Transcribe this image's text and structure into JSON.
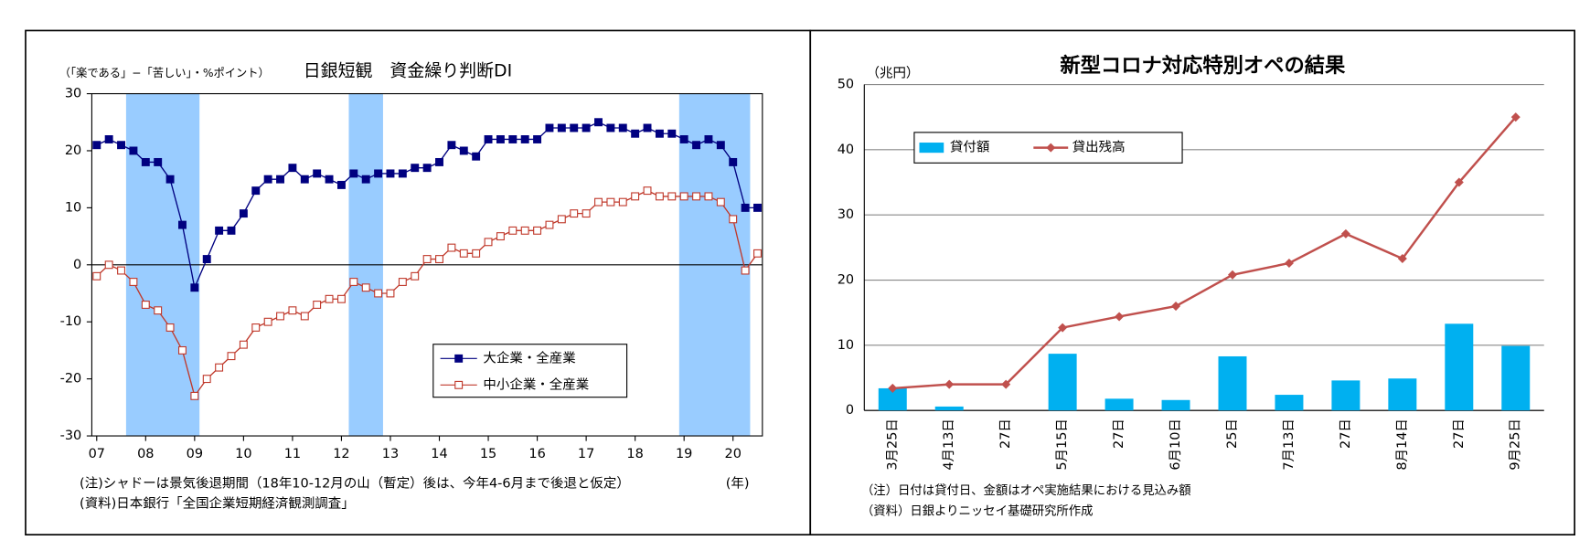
{
  "chart_data": [
    {
      "type": "line",
      "title": "日銀短観　資金繰り判断DI",
      "y_label": "（「楽である」−「苦しい」・%ポイント）",
      "x_label": "(年)",
      "notes": [
        "(注)シャドーは景気後退期間（18年10-12月の山（暫定）後は、今年4-6月まで後退と仮定）",
        "(資料)日本銀行「全国企業短期経済観測調査」"
      ],
      "x": [
        2007,
        2007.25,
        2007.5,
        2007.75,
        2008,
        2008.25,
        2008.5,
        2008.75,
        2009,
        2009.25,
        2009.5,
        2009.75,
        2010,
        2010.25,
        2010.5,
        2010.75,
        2011,
        2011.25,
        2011.5,
        2011.75,
        2012,
        2012.25,
        2012.5,
        2012.75,
        2013,
        2013.25,
        2013.5,
        2013.75,
        2014,
        2014.25,
        2014.5,
        2014.75,
        2015,
        2015.25,
        2015.5,
        2015.75,
        2016,
        2016.25,
        2016.5,
        2016.75,
        2017,
        2017.25,
        2017.5,
        2017.75,
        2018,
        2018.25,
        2018.5,
        2018.75,
        2019,
        2019.25,
        2019.5,
        2019.75,
        2020,
        2020.25,
        2020.5
      ],
      "series": [
        {
          "name": "大企業・全産業",
          "color": "#000080",
          "marker": "filled",
          "values": [
            21,
            22,
            21,
            20,
            18,
            18,
            15,
            7,
            -4,
            1,
            6,
            6,
            9,
            13,
            15,
            15,
            17,
            15,
            16,
            15,
            14,
            16,
            15,
            16,
            16,
            16,
            17,
            17,
            18,
            21,
            20,
            19,
            22,
            22,
            22,
            22,
            22,
            24,
            24,
            24,
            24,
            25,
            24,
            24,
            23,
            24,
            23,
            23,
            22,
            21,
            22,
            21,
            18,
            10,
            10
          ]
        },
        {
          "name": "中小企業・全産業",
          "color": "#c0392b",
          "marker": "open",
          "values": [
            -2,
            0,
            -1,
            -3,
            -7,
            -8,
            -11,
            -15,
            -23,
            -20,
            -18,
            -16,
            -14,
            -11,
            -10,
            -9,
            -8,
            -9,
            -7,
            -6,
            -6,
            -3,
            -4,
            -5,
            -5,
            -3,
            -2,
            1,
            1,
            3,
            2,
            2,
            4,
            5,
            6,
            6,
            6,
            7,
            8,
            9,
            9,
            11,
            11,
            11,
            12,
            13,
            12,
            12,
            12,
            12,
            12,
            11,
            8,
            -1,
            2
          ]
        }
      ],
      "shading": [
        [
          2007.6,
          2009.1
        ],
        [
          2012.15,
          2012.85
        ],
        [
          2018.9,
          2020.35
        ]
      ],
      "shading_color": "#99ccff",
      "xlim": [
        2006.9,
        2020.6
      ],
      "xticks": [
        {
          "value": 2007,
          "label": "07"
        },
        {
          "value": 2008,
          "label": "08"
        },
        {
          "value": 2009,
          "label": "09"
        },
        {
          "value": 2010,
          "label": "10"
        },
        {
          "value": 2011,
          "label": "11"
        },
        {
          "value": 2012,
          "label": "12"
        },
        {
          "value": 2013,
          "label": "13"
        },
        {
          "value": 2014,
          "label": "14"
        },
        {
          "value": 2015,
          "label": "15"
        },
        {
          "value": 2016,
          "label": "16"
        },
        {
          "value": 2017,
          "label": "17"
        },
        {
          "value": 2018,
          "label": "18"
        },
        {
          "value": 2019,
          "label": "19"
        },
        {
          "value": 2020,
          "label": "20"
        }
      ],
      "ylim": [
        -30,
        30
      ],
      "yticks": [
        -30,
        -20,
        -10,
        0,
        10,
        20,
        30
      ],
      "grid": false,
      "legend": "lower-right"
    },
    {
      "type": "combo",
      "title": "新型コロナ対応特別オペの結果",
      "y_label": "（兆円）",
      "notes": [
        "（注）日付は貸付日、金額はオペ実施結果における見込み額",
        "（資料）日銀よりニッセイ基礎研究所作成"
      ],
      "categories": [
        "3月25日",
        "4月13日",
        "27日",
        "5月15日",
        "27日",
        "6月10日",
        "25日",
        "7月13日",
        "27日",
        "8月14日",
        "27日",
        "9月25日"
      ],
      "series": [
        {
          "name": "貸付額",
          "type": "bar",
          "color": "#00b0f0",
          "values": [
            3.4,
            0.6,
            0,
            8.7,
            1.8,
            1.6,
            8.3,
            2.4,
            4.6,
            4.9,
            13.3,
            9.9
          ]
        },
        {
          "name": "貸出残高",
          "type": "line",
          "color": "#c0504d",
          "values": [
            3.4,
            4.0,
            4.0,
            12.7,
            14.4,
            16.0,
            20.8,
            22.6,
            27.1,
            23.3,
            35.0,
            45.0
          ]
        }
      ],
      "ylim": [
        0,
        50
      ],
      "yticks": [
        0,
        10,
        20,
        30,
        40,
        50
      ],
      "grid": true,
      "legend": "upper-left"
    }
  ]
}
